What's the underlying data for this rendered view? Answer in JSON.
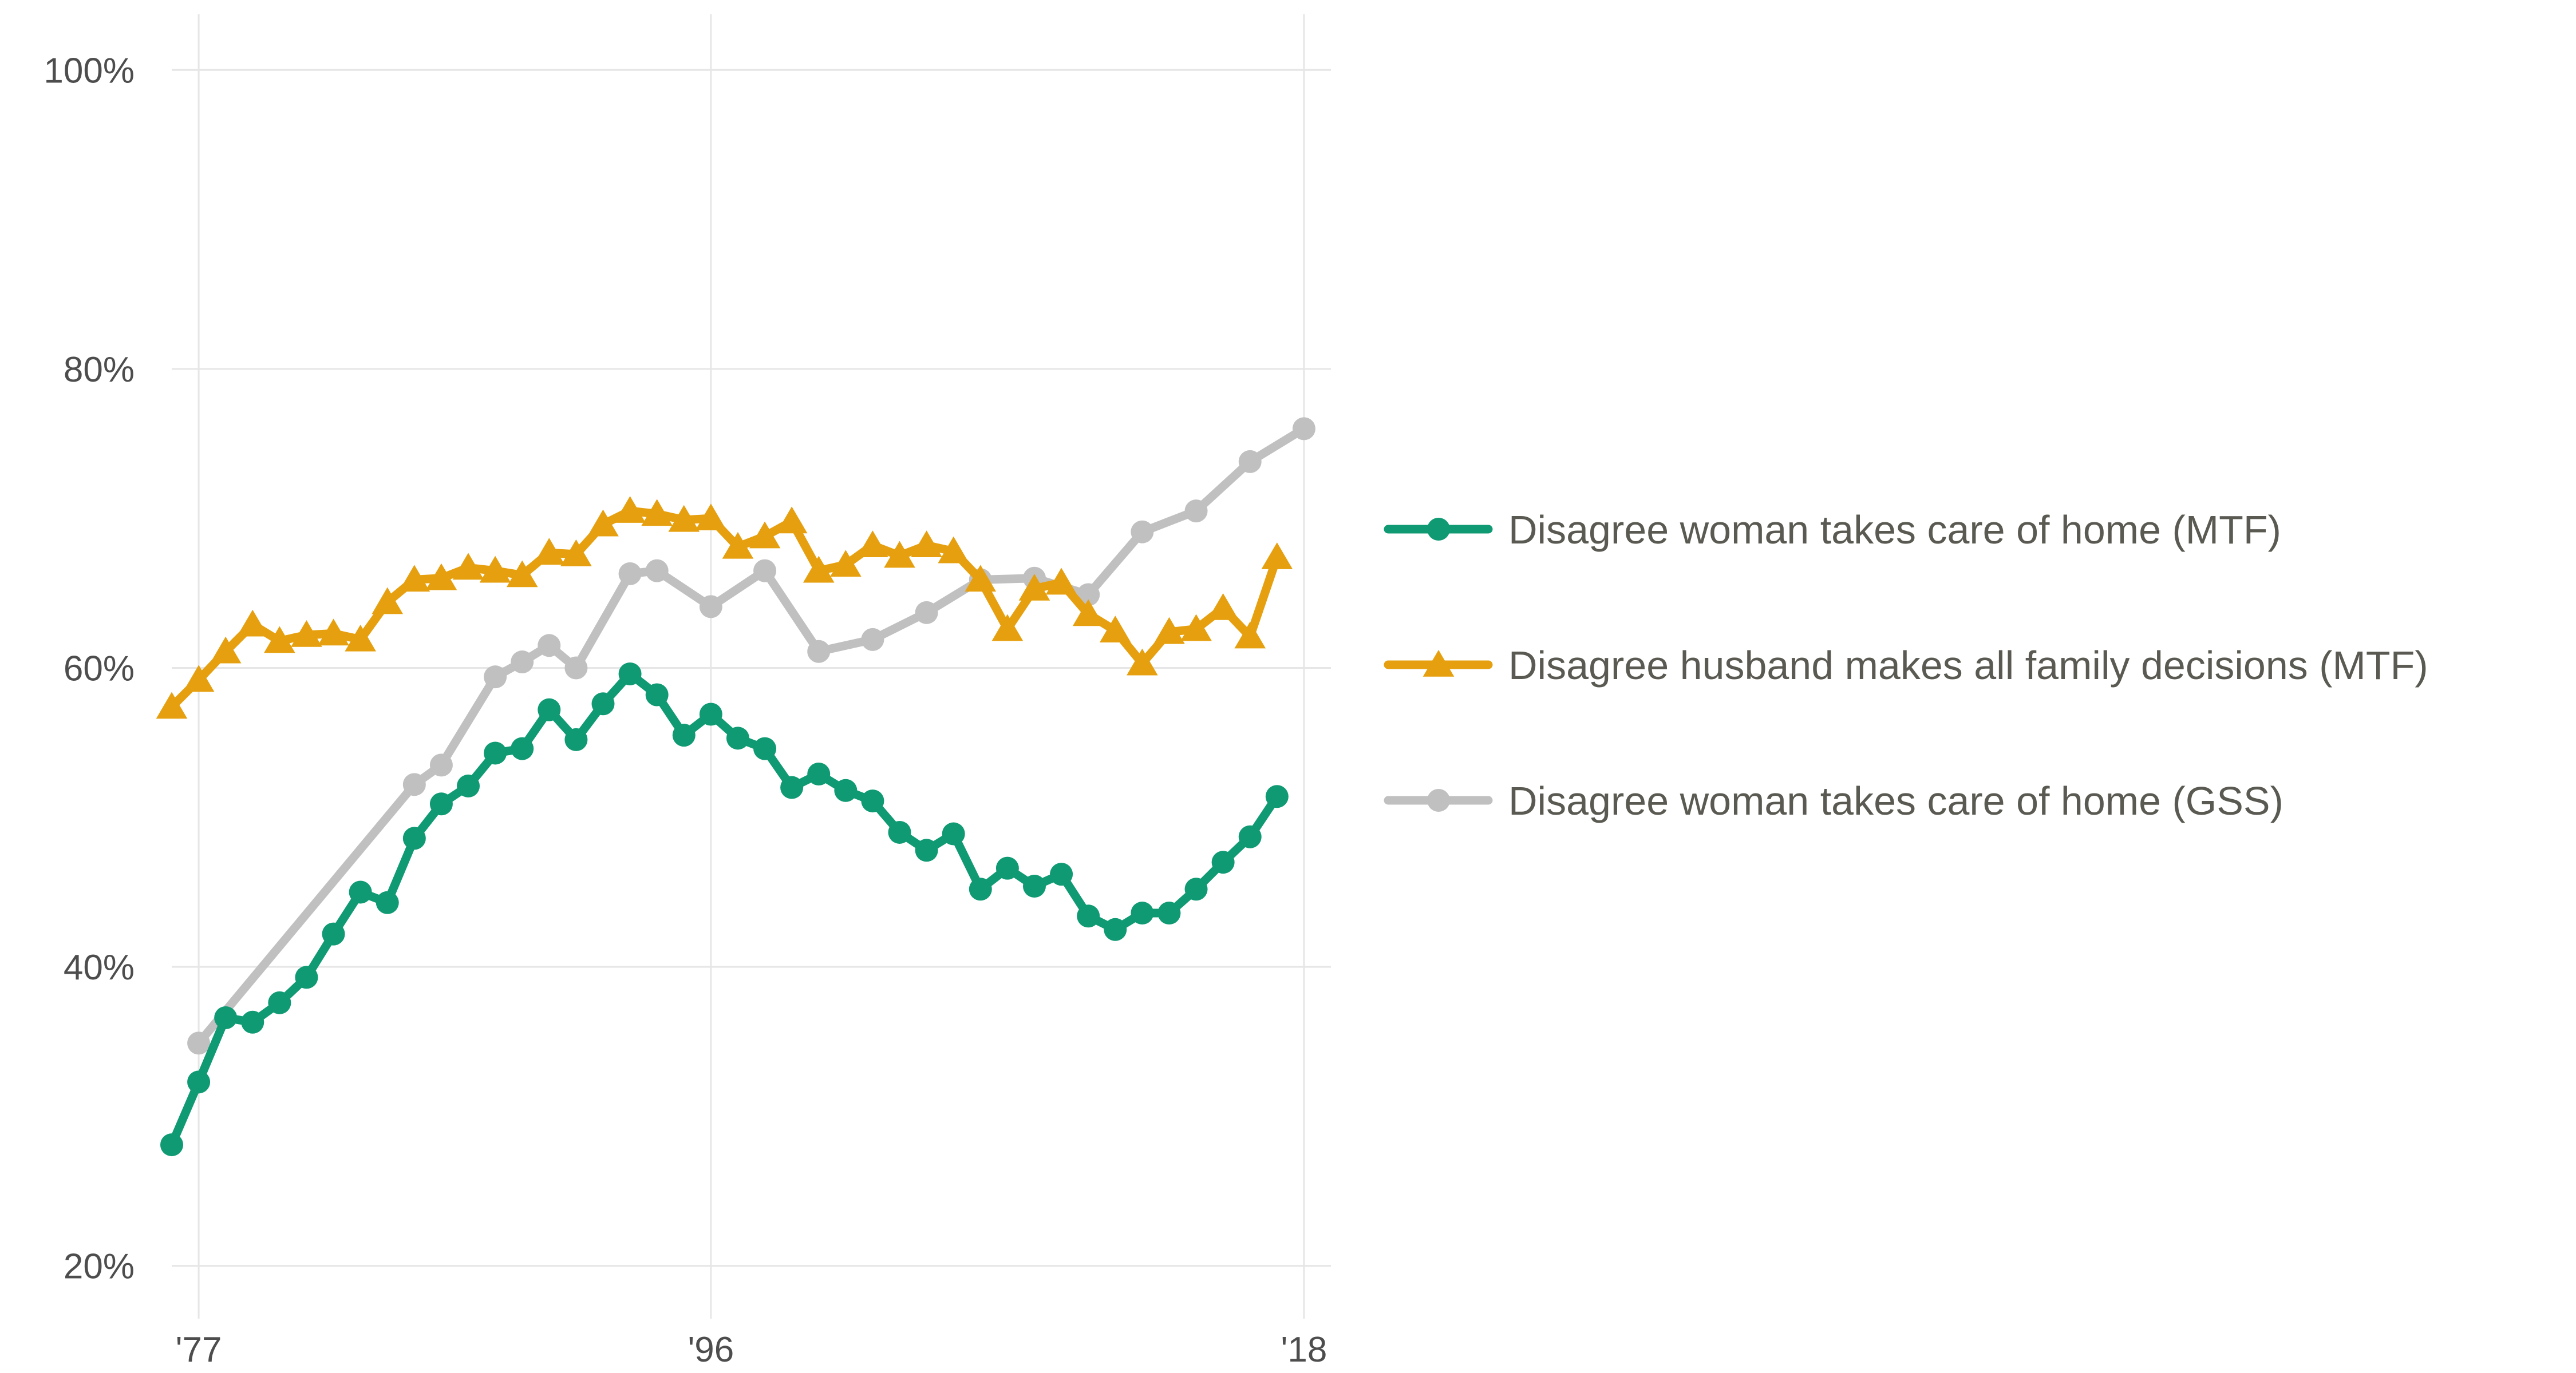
{
  "chart_data": {
    "type": "line",
    "title": "",
    "xlabel": "",
    "ylabel": "",
    "xlim": [
      1976,
      2019
    ],
    "ylim": [
      18,
      102
    ],
    "x_ticks": [
      {
        "value": 1977,
        "label": "'77"
      },
      {
        "value": 1996,
        "label": "'96"
      },
      {
        "value": 2018,
        "label": "'18"
      }
    ],
    "y_ticks": [
      {
        "value": 20,
        "label": "20%"
      },
      {
        "value": 40,
        "label": "40%"
      },
      {
        "value": 60,
        "label": "60%"
      },
      {
        "value": 80,
        "label": "80%"
      },
      {
        "value": 100,
        "label": "100%"
      }
    ],
    "grid": true,
    "legend_position": "right",
    "series": [
      {
        "name": "Disagree woman takes care of home (MTF)",
        "color": "#0f9a73",
        "marker": "circle",
        "points": [
          [
            1976,
            28.1
          ],
          [
            1977,
            32.3
          ],
          [
            1978,
            36.6
          ],
          [
            1979,
            36.3
          ],
          [
            1980,
            37.6
          ],
          [
            1981,
            39.3
          ],
          [
            1982,
            42.2
          ],
          [
            1983,
            45.0
          ],
          [
            1984,
            44.3
          ],
          [
            1985,
            48.6
          ],
          [
            1986,
            50.9
          ],
          [
            1987,
            52.1
          ],
          [
            1988,
            54.3
          ],
          [
            1989,
            54.6
          ],
          [
            1990,
            57.2
          ],
          [
            1991,
            55.2
          ],
          [
            1992,
            57.6
          ],
          [
            1993,
            59.6
          ],
          [
            1994,
            58.2
          ],
          [
            1995,
            55.5
          ],
          [
            1996,
            56.9
          ],
          [
            1997,
            55.3
          ],
          [
            1998,
            54.6
          ],
          [
            1999,
            52.0
          ],
          [
            2000,
            52.9
          ],
          [
            2001,
            51.8
          ],
          [
            2002,
            51.1
          ],
          [
            2003,
            49.0
          ],
          [
            2004,
            47.8
          ],
          [
            2005,
            48.9
          ],
          [
            2006,
            45.2
          ],
          [
            2007,
            46.6
          ],
          [
            2008,
            45.4
          ],
          [
            2009,
            46.2
          ],
          [
            2010,
            43.4
          ],
          [
            2011,
            42.5
          ],
          [
            2012,
            43.6
          ],
          [
            2013,
            43.6
          ],
          [
            2014,
            45.2
          ],
          [
            2015,
            47.0
          ],
          [
            2016,
            48.7
          ],
          [
            2017,
            51.4
          ]
        ]
      },
      {
        "name": "Disagree husband makes all family decisions (MTF)",
        "color": "#e6a00f",
        "marker": "triangle",
        "points": [
          [
            1976,
            57.4
          ],
          [
            1977,
            59.2
          ],
          [
            1978,
            61.1
          ],
          [
            1979,
            62.9
          ],
          [
            1980,
            61.8
          ],
          [
            1981,
            62.2
          ],
          [
            1982,
            62.3
          ],
          [
            1983,
            61.9
          ],
          [
            1984,
            64.4
          ],
          [
            1985,
            65.9
          ],
          [
            1986,
            66.0
          ],
          [
            1987,
            66.7
          ],
          [
            1988,
            66.5
          ],
          [
            1989,
            66.2
          ],
          [
            1990,
            67.7
          ],
          [
            1991,
            67.6
          ],
          [
            1992,
            69.6
          ],
          [
            1993,
            70.5
          ],
          [
            1994,
            70.3
          ],
          [
            1995,
            69.9
          ],
          [
            1996,
            70.0
          ],
          [
            1997,
            68.1
          ],
          [
            1998,
            68.8
          ],
          [
            1999,
            69.8
          ],
          [
            2000,
            66.5
          ],
          [
            2001,
            66.9
          ],
          [
            2002,
            68.2
          ],
          [
            2003,
            67.5
          ],
          [
            2004,
            68.2
          ],
          [
            2005,
            67.8
          ],
          [
            2006,
            65.9
          ],
          [
            2007,
            62.6
          ],
          [
            2008,
            65.3
          ],
          [
            2009,
            65.7
          ],
          [
            2010,
            63.6
          ],
          [
            2011,
            62.5
          ],
          [
            2012,
            60.3
          ],
          [
            2013,
            62.4
          ],
          [
            2014,
            62.6
          ],
          [
            2015,
            64.0
          ],
          [
            2016,
            62.1
          ],
          [
            2017,
            67.4
          ]
        ]
      },
      {
        "name": "Disagree woman takes care of home (GSS)",
        "color": "#c0c0c0",
        "marker": "circle",
        "points": [
          [
            1977,
            34.9
          ],
          [
            1985,
            52.2
          ],
          [
            1986,
            53.5
          ],
          [
            1988,
            59.4
          ],
          [
            1989,
            60.4
          ],
          [
            1990,
            61.5
          ],
          [
            1991,
            60.0
          ],
          [
            1993,
            66.3
          ],
          [
            1994,
            66.5
          ],
          [
            1996,
            64.1
          ],
          [
            1998,
            66.5
          ],
          [
            2000,
            61.1
          ],
          [
            2002,
            61.9
          ],
          [
            2004,
            63.7
          ],
          [
            2006,
            65.9
          ],
          [
            2008,
            66.0
          ],
          [
            2010,
            64.9
          ],
          [
            2012,
            69.1
          ],
          [
            2014,
            70.5
          ],
          [
            2016,
            73.8
          ],
          [
            2018,
            76.0
          ]
        ]
      }
    ]
  }
}
